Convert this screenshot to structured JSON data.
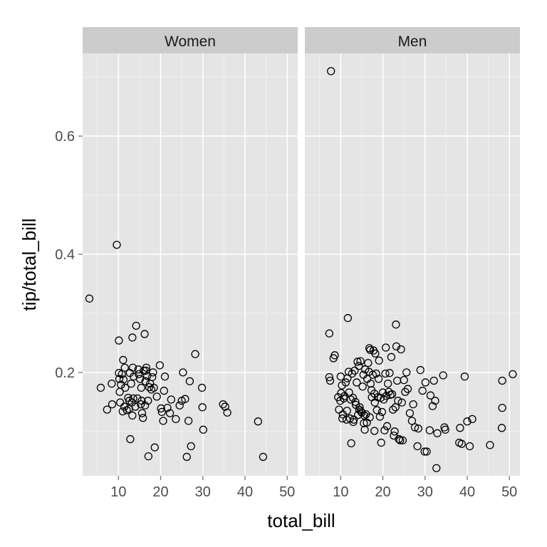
{
  "chart_data": {
    "type": "scatter",
    "xlabel": "total_bill",
    "ylabel": "tip/total_bill",
    "xlim": [
      1.5,
      52.5
    ],
    "ylim": [
      0.025,
      0.74
    ],
    "x_ticks": [
      10,
      20,
      30,
      40,
      50
    ],
    "x_tick_labels": [
      "10",
      "20",
      "30",
      "40",
      "50"
    ],
    "y_ticks": [
      0.2,
      0.4,
      0.6
    ],
    "y_tick_labels": [
      "0.2",
      "0.4",
      "0.6"
    ],
    "grid": true,
    "colors": {
      "panel_bg": "#e5e5e5",
      "grid_major": "#ffffff",
      "strip_bg": "#cccccc",
      "point_stroke": "#000000"
    },
    "panels": [
      {
        "label": "Women",
        "points": [
          [
            3.1,
            0.325
          ],
          [
            5.8,
            0.174
          ],
          [
            7.3,
            0.137
          ],
          [
            8.4,
            0.181
          ],
          [
            8.5,
            0.146
          ],
          [
            9.6,
            0.416
          ],
          [
            10.1,
            0.254
          ],
          [
            10.1,
            0.199
          ],
          [
            10.2,
            0.189
          ],
          [
            10.3,
            0.167
          ],
          [
            10.4,
            0.149
          ],
          [
            10.6,
            0.179
          ],
          [
            10.8,
            0.197
          ],
          [
            11.0,
            0.134
          ],
          [
            11.1,
            0.221
          ],
          [
            11.2,
            0.188
          ],
          [
            11.4,
            0.142
          ],
          [
            11.5,
            0.208
          ],
          [
            11.6,
            0.174
          ],
          [
            12.0,
            0.136
          ],
          [
            12.3,
            0.157
          ],
          [
            12.5,
            0.138
          ],
          [
            12.6,
            0.152
          ],
          [
            12.7,
            0.199
          ],
          [
            12.8,
            0.087
          ],
          [
            13.0,
            0.181
          ],
          [
            13.2,
            0.149
          ],
          [
            13.3,
            0.259
          ],
          [
            13.3,
            0.127
          ],
          [
            13.4,
            0.208
          ],
          [
            13.5,
            0.156
          ],
          [
            13.6,
            0.193
          ],
          [
            14.0,
            0.142
          ],
          [
            14.2,
            0.279
          ],
          [
            14.5,
            0.156
          ],
          [
            14.7,
            0.205
          ],
          [
            14.8,
            0.197
          ],
          [
            15.1,
            0.189
          ],
          [
            15.3,
            0.146
          ],
          [
            15.4,
            0.174
          ],
          [
            15.5,
            0.152
          ],
          [
            15.6,
            0.131
          ],
          [
            15.8,
            0.123
          ],
          [
            16.0,
            0.203
          ],
          [
            16.2,
            0.265
          ],
          [
            16.3,
            0.144
          ],
          [
            16.4,
            0.185
          ],
          [
            16.5,
            0.203
          ],
          [
            16.6,
            0.208
          ],
          [
            16.8,
            0.194
          ],
          [
            17.0,
            0.152
          ],
          [
            17.1,
            0.058
          ],
          [
            17.3,
            0.175
          ],
          [
            17.5,
            0.181
          ],
          [
            17.8,
            0.171
          ],
          [
            18.0,
            0.192
          ],
          [
            18.2,
            0.2
          ],
          [
            18.4,
            0.174
          ],
          [
            18.6,
            0.073
          ],
          [
            19.1,
            0.159
          ],
          [
            19.8,
            0.212
          ],
          [
            20.1,
            0.139
          ],
          [
            20.3,
            0.133
          ],
          [
            20.6,
            0.118
          ],
          [
            20.8,
            0.169
          ],
          [
            21.0,
            0.193
          ],
          [
            21.6,
            0.14
          ],
          [
            22.2,
            0.131
          ],
          [
            22.5,
            0.154
          ],
          [
            23.6,
            0.121
          ],
          [
            24.5,
            0.144
          ],
          [
            25.0,
            0.152
          ],
          [
            25.3,
            0.2
          ],
          [
            25.8,
            0.155
          ],
          [
            26.2,
            0.057
          ],
          [
            26.6,
            0.118
          ],
          [
            26.9,
            0.185
          ],
          [
            27.2,
            0.075
          ],
          [
            28.2,
            0.231
          ],
          [
            29.8,
            0.174
          ],
          [
            29.9,
            0.141
          ],
          [
            30.1,
            0.103
          ],
          [
            34.8,
            0.146
          ],
          [
            35.3,
            0.142
          ],
          [
            35.8,
            0.132
          ],
          [
            43.1,
            0.117
          ],
          [
            44.3,
            0.057
          ]
        ]
      },
      {
        "label": "Men",
        "points": [
          [
            7.3,
            0.266
          ],
          [
            7.3,
            0.192
          ],
          [
            7.5,
            0.186
          ],
          [
            7.7,
            0.71
          ],
          [
            8.3,
            0.224
          ],
          [
            8.6,
            0.229
          ],
          [
            9.4,
            0.158
          ],
          [
            9.6,
            0.137
          ],
          [
            9.9,
            0.152
          ],
          [
            10.0,
            0.193
          ],
          [
            10.1,
            0.165
          ],
          [
            10.3,
            0.178
          ],
          [
            10.4,
            0.122
          ],
          [
            10.5,
            0.129
          ],
          [
            10.7,
            0.156
          ],
          [
            10.9,
            0.16
          ],
          [
            11.2,
            0.183
          ],
          [
            11.4,
            0.12
          ],
          [
            11.5,
            0.135
          ],
          [
            11.6,
            0.19
          ],
          [
            11.7,
            0.292
          ],
          [
            11.9,
            0.201
          ],
          [
            12.0,
            0.166
          ],
          [
            12.2,
            0.122
          ],
          [
            12.4,
            0.154
          ],
          [
            12.5,
            0.08
          ],
          [
            12.7,
            0.198
          ],
          [
            12.9,
            0.157
          ],
          [
            13.0,
            0.116
          ],
          [
            13.1,
            0.12
          ],
          [
            13.3,
            0.203
          ],
          [
            13.5,
            0.15
          ],
          [
            13.6,
            0.145
          ],
          [
            13.8,
            0.183
          ],
          [
            14.0,
            0.218
          ],
          [
            14.1,
            0.128
          ],
          [
            14.3,
            0.211
          ],
          [
            14.4,
            0.137
          ],
          [
            14.5,
            0.141
          ],
          [
            14.7,
            0.219
          ],
          [
            14.8,
            0.134
          ],
          [
            15.0,
            0.132
          ],
          [
            15.2,
            0.176
          ],
          [
            15.4,
            0.196
          ],
          [
            15.5,
            0.114
          ],
          [
            15.6,
            0.127
          ],
          [
            15.7,
            0.103
          ],
          [
            15.8,
            0.205
          ],
          [
            16.0,
            0.129
          ],
          [
            16.2,
            0.115
          ],
          [
            16.3,
            0.189
          ],
          [
            16.5,
            0.216
          ],
          [
            16.7,
            0.201
          ],
          [
            16.8,
            0.241
          ],
          [
            16.9,
            0.124
          ],
          [
            17.0,
            0.238
          ],
          [
            17.1,
            0.181
          ],
          [
            17.3,
            0.17
          ],
          [
            17.4,
            0.158
          ],
          [
            17.6,
            0.196
          ],
          [
            17.8,
            0.237
          ],
          [
            18.0,
            0.164
          ],
          [
            18.0,
            0.101
          ],
          [
            18.1,
            0.149
          ],
          [
            18.2,
            0.232
          ],
          [
            18.4,
            0.198
          ],
          [
            18.6,
            0.136
          ],
          [
            18.8,
            0.158
          ],
          [
            19.0,
            0.189
          ],
          [
            19.1,
            0.22
          ],
          [
            19.3,
            0.125
          ],
          [
            19.5,
            0.157
          ],
          [
            19.6,
            0.081
          ],
          [
            19.8,
            0.133
          ],
          [
            20.0,
            0.166
          ],
          [
            20.2,
            0.154
          ],
          [
            20.4,
            0.102
          ],
          [
            20.6,
            0.198
          ],
          [
            20.7,
            0.242
          ],
          [
            20.8,
            0.16
          ],
          [
            21.0,
            0.109
          ],
          [
            21.2,
            0.181
          ],
          [
            21.4,
            0.167
          ],
          [
            21.6,
            0.199
          ],
          [
            21.8,
            0.162
          ],
          [
            22.0,
            0.226
          ],
          [
            22.2,
            0.163
          ],
          [
            22.4,
            0.137
          ],
          [
            22.6,
            0.093
          ],
          [
            22.8,
            0.1
          ],
          [
            23.0,
            0.141
          ],
          [
            23.1,
            0.281
          ],
          [
            23.2,
            0.244
          ],
          [
            23.4,
            0.186
          ],
          [
            23.6,
            0.152
          ],
          [
            23.8,
            0.087
          ],
          [
            24.1,
            0.085
          ],
          [
            24.3,
            0.239
          ],
          [
            24.5,
            0.149
          ],
          [
            24.7,
            0.085
          ],
          [
            25.0,
            0.187
          ],
          [
            25.3,
            0.167
          ],
          [
            25.6,
            0.2
          ],
          [
            25.9,
            0.172
          ],
          [
            26.4,
            0.131
          ],
          [
            26.9,
            0.118
          ],
          [
            27.2,
            0.146
          ],
          [
            27.6,
            0.107
          ],
          [
            28.2,
            0.075
          ],
          [
            28.4,
            0.105
          ],
          [
            28.9,
            0.204
          ],
          [
            29.4,
            0.169
          ],
          [
            29.9,
            0.066
          ],
          [
            30.1,
            0.183
          ],
          [
            30.4,
            0.066
          ],
          [
            31.1,
            0.102
          ],
          [
            31.3,
            0.161
          ],
          [
            31.8,
            0.143
          ],
          [
            32.1,
            0.186
          ],
          [
            32.4,
            0.152
          ],
          [
            32.7,
            0.038
          ],
          [
            32.9,
            0.097
          ],
          [
            34.3,
            0.195
          ],
          [
            34.6,
            0.107
          ],
          [
            34.8,
            0.103
          ],
          [
            38.1,
            0.081
          ],
          [
            38.3,
            0.106
          ],
          [
            38.7,
            0.079
          ],
          [
            39.4,
            0.193
          ],
          [
            40.0,
            0.117
          ],
          [
            40.6,
            0.075
          ],
          [
            41.2,
            0.121
          ],
          [
            45.4,
            0.077
          ],
          [
            48.2,
            0.106
          ],
          [
            48.3,
            0.186
          ],
          [
            48.3,
            0.14
          ],
          [
            50.8,
            0.197
          ]
        ]
      }
    ]
  }
}
